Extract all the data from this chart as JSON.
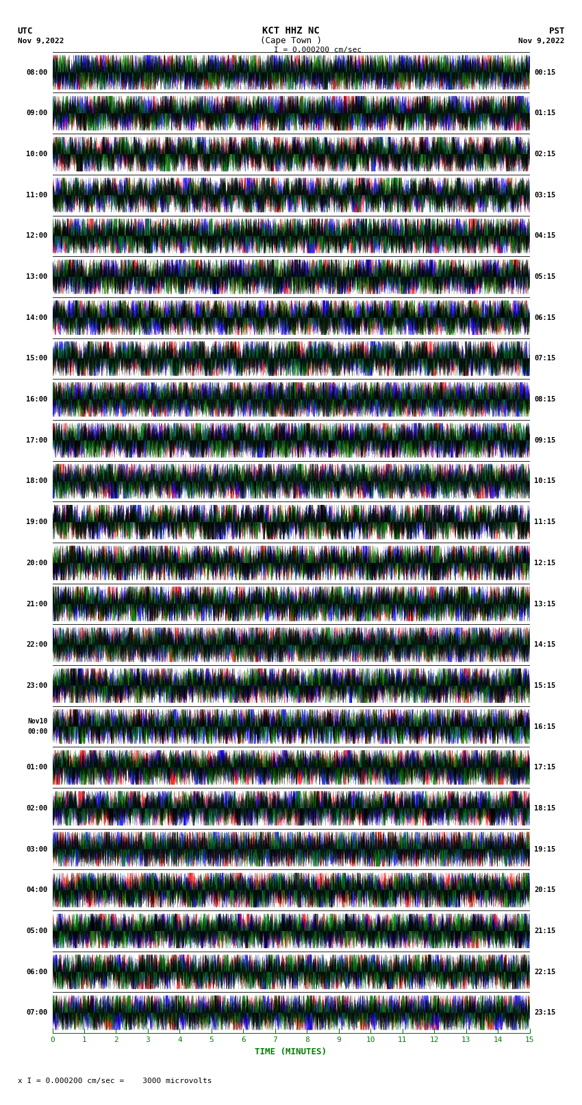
{
  "title_line1": "KCT HHZ NC",
  "title_line2": "(Cape Town )",
  "scale_text": "I = 0.000200 cm/sec",
  "bottom_scale_text": "x I = 0.000200 cm/sec =    3000 microvolts",
  "utc_label": "UTC",
  "utc_date": "Nov 9,2022",
  "pst_label": "PST",
  "pst_date": "Nov 9,2022",
  "xlabel": "TIME (MINUTES)",
  "xlim": [
    0,
    15
  ],
  "xticks": [
    0,
    1,
    2,
    3,
    4,
    5,
    6,
    7,
    8,
    9,
    10,
    11,
    12,
    13,
    14,
    15
  ],
  "num_rows": 24,
  "utc_times": [
    "08:00",
    "09:00",
    "10:00",
    "11:00",
    "12:00",
    "13:00",
    "14:00",
    "15:00",
    "16:00",
    "17:00",
    "18:00",
    "19:00",
    "20:00",
    "21:00",
    "22:00",
    "23:00",
    "Nov10\n00:00",
    "01:00",
    "02:00",
    "03:00",
    "04:00",
    "05:00",
    "06:00",
    "07:00"
  ],
  "pst_times": [
    "00:15",
    "01:15",
    "02:15",
    "03:15",
    "04:15",
    "05:15",
    "06:15",
    "07:15",
    "08:15",
    "09:15",
    "10:15",
    "11:15",
    "12:15",
    "13:15",
    "14:15",
    "15:15",
    "16:15",
    "17:15",
    "18:15",
    "19:15",
    "20:15",
    "21:15",
    "22:15",
    "23:15"
  ],
  "colors": [
    "red",
    "blue",
    "green",
    "black"
  ],
  "bg_color": "white",
  "figsize": [
    8.5,
    16.13
  ],
  "dpi": 100,
  "amplitude": 0.42,
  "noise_seed": 42,
  "samples_per_row": 9000
}
